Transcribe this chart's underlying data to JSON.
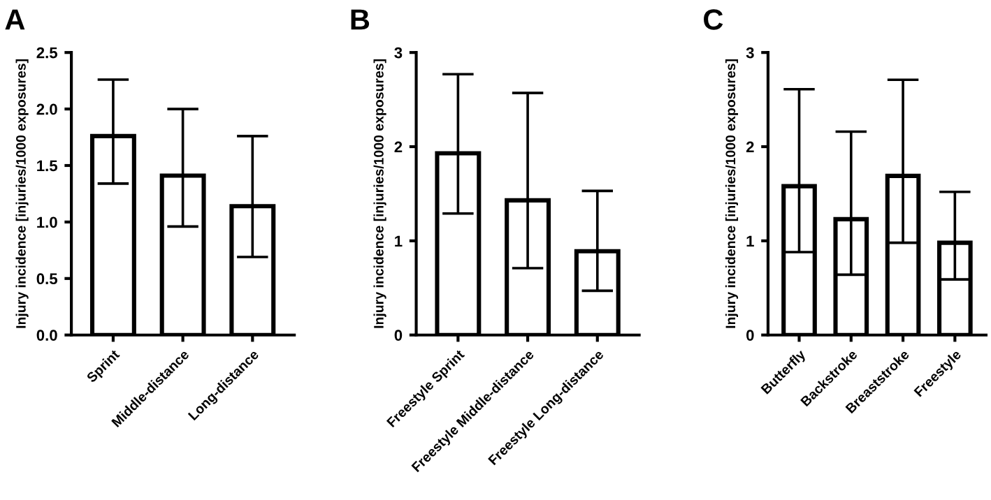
{
  "chart_data": [
    {
      "type": "bar",
      "title": "A",
      "ylabel": "Injury incidence [injuries/1000 exposures]",
      "categories": [
        "Sprint",
        "Middle-distance",
        "Long-distance"
      ],
      "values": [
        1.76,
        1.41,
        1.14
      ],
      "errors": [
        [
          1.34,
          2.26
        ],
        [
          0.96,
          2.0
        ],
        [
          0.69,
          1.76
        ]
      ],
      "color": "#ffffff",
      "ylim": [
        0,
        2.5
      ],
      "yticks": [
        {
          "value": 0,
          "label": "0.0"
        },
        {
          "value": 0.5,
          "label": "0.5"
        },
        {
          "value": 1,
          "label": "1.0"
        },
        {
          "value": 1.5,
          "label": "1.5"
        },
        {
          "value": 2,
          "label": "2.0"
        },
        {
          "value": 2.5,
          "label": "2.5"
        }
      ],
      "grid": false,
      "legend": false
    },
    {
      "type": "bar",
      "title": "B",
      "ylabel": "Injury incidence [injuries/1000 exposures]",
      "categories": [
        "Freestyle Sprint",
        "Freestyle Middle-distance",
        "Freestyle Long-distance"
      ],
      "values": [
        1.93,
        1.43,
        0.89
      ],
      "errors": [
        [
          1.29,
          2.77
        ],
        [
          0.71,
          2.57
        ],
        [
          0.47,
          1.53
        ]
      ],
      "color": "#ffffff",
      "ylim": [
        0,
        3
      ],
      "yticks": [
        0,
        1,
        2,
        3
      ],
      "grid": false,
      "legend": false
    },
    {
      "type": "bar",
      "title": "C",
      "ylabel": "Injury incidence [injuries/1000 exposures]",
      "categories": [
        "Butterfly",
        "Backstroke",
        "Breaststroke",
        "Freestyle"
      ],
      "values": [
        1.58,
        1.23,
        1.69,
        0.98
      ],
      "errors": [
        [
          0.88,
          2.61
        ],
        [
          0.64,
          2.16
        ],
        [
          0.98,
          2.71
        ],
        [
          0.59,
          1.52
        ]
      ],
      "color": "#ffffff",
      "ylim": [
        0,
        3
      ],
      "yticks": [
        0,
        1,
        2,
        3
      ],
      "grid": false,
      "legend": false
    }
  ]
}
